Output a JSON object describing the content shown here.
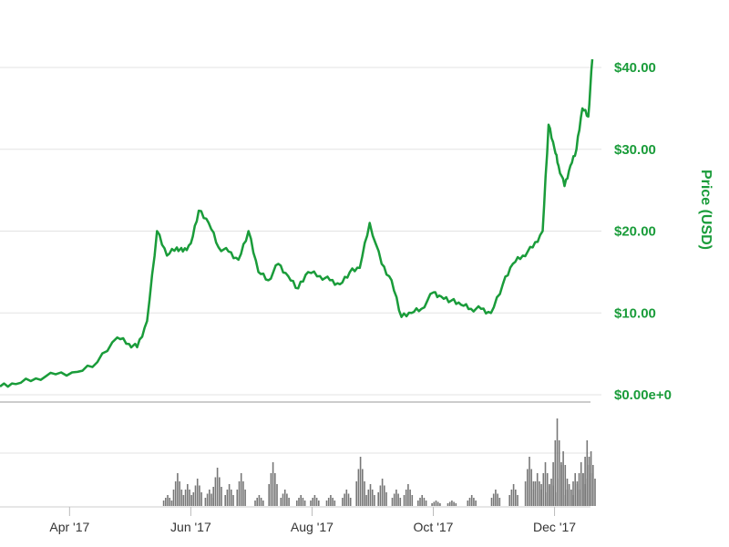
{
  "chart_data": {
    "type": "line",
    "title": "",
    "ylabel": "Price (USD)",
    "ylim": [
      0,
      40
    ],
    "y_ticks": [
      "$0.00e+0",
      "$10.00",
      "$20.00",
      "$30.00",
      "$40.00"
    ],
    "x_ticks": [
      "Apr '17",
      "Jun '17",
      "Aug '17",
      "Oct '17",
      "Dec '17"
    ],
    "x_tick_dates": [
      "2017-04-01",
      "2017-06-01",
      "2017-08-01",
      "2017-10-01",
      "2017-12-01"
    ],
    "xlim": [
      "2017-02-25",
      "2017-12-20"
    ],
    "grid": true,
    "series": [
      {
        "color": "#1a9c3a",
        "x": [
          "2017-02-25",
          "2017-03-05",
          "2017-03-15",
          "2017-03-25",
          "2017-04-05",
          "2017-04-15",
          "2017-04-25",
          "2017-05-01",
          "2017-05-05",
          "2017-05-10",
          "2017-05-15",
          "2017-05-20",
          "2017-05-25",
          "2017-05-28",
          "2017-06-01",
          "2017-06-05",
          "2017-06-10",
          "2017-06-15",
          "2017-06-20",
          "2017-06-25",
          "2017-06-30",
          "2017-07-05",
          "2017-07-10",
          "2017-07-15",
          "2017-07-20",
          "2017-07-25",
          "2017-07-30",
          "2017-08-05",
          "2017-08-10",
          "2017-08-15",
          "2017-08-20",
          "2017-08-25",
          "2017-08-30",
          "2017-09-05",
          "2017-09-10",
          "2017-09-15",
          "2017-09-20",
          "2017-09-25",
          "2017-10-01",
          "2017-10-05",
          "2017-10-10",
          "2017-10-15",
          "2017-10-20",
          "2017-10-25",
          "2017-10-30",
          "2017-11-05",
          "2017-11-10",
          "2017-11-15",
          "2017-11-20",
          "2017-11-25",
          "2017-11-28",
          "2017-12-01",
          "2017-12-03",
          "2017-12-06",
          "2017-12-09",
          "2017-12-12",
          "2017-12-15",
          "2017-12-18",
          "2017-12-20"
        ],
        "values": [
          1.0,
          1.3,
          2.0,
          2.5,
          2.8,
          4.0,
          7.0,
          6.2,
          5.8,
          9.0,
          20.0,
          17.0,
          18.0,
          17.5,
          18.5,
          22.5,
          21.0,
          18.0,
          17.5,
          16.5,
          20.0,
          15.0,
          14.0,
          16.0,
          14.5,
          13.0,
          15.0,
          14.5,
          14.0,
          13.5,
          15.0,
          15.5,
          21.0,
          16.0,
          14.0,
          9.5,
          10.0,
          10.5,
          12.5,
          12.0,
          11.5,
          11.0,
          10.5,
          10.5,
          10.0,
          13.5,
          16.0,
          17.0,
          18.0,
          20.0,
          33.0,
          30.0,
          28.0,
          25.5,
          28.0,
          30.0,
          35.0,
          34.0,
          41.0
        ]
      }
    ],
    "volume": {
      "color": "#777777",
      "x": [
        "2017-05-20",
        "2017-05-25",
        "2017-05-30",
        "2017-06-04",
        "2017-06-10",
        "2017-06-14",
        "2017-06-20",
        "2017-06-26",
        "2017-07-05",
        "2017-07-12",
        "2017-07-18",
        "2017-07-26",
        "2017-08-02",
        "2017-08-10",
        "2017-08-18",
        "2017-08-25",
        "2017-08-30",
        "2017-09-05",
        "2017-09-12",
        "2017-09-18",
        "2017-09-25",
        "2017-10-02",
        "2017-10-10",
        "2017-10-20",
        "2017-11-01",
        "2017-11-10",
        "2017-11-18",
        "2017-11-22",
        "2017-11-26",
        "2017-11-29",
        "2017-12-02",
        "2017-12-05",
        "2017-12-08",
        "2017-12-11",
        "2017-12-14",
        "2017-12-17",
        "2017-12-19"
      ],
      "values": [
        2,
        6,
        4,
        5,
        3,
        7,
        4,
        6,
        2,
        8,
        3,
        2,
        2,
        2,
        3,
        9,
        4,
        5,
        3,
        4,
        2,
        1,
        1,
        2,
        3,
        4,
        9,
        6,
        8,
        5,
        16,
        10,
        4,
        6,
        8,
        12,
        10
      ]
    }
  }
}
